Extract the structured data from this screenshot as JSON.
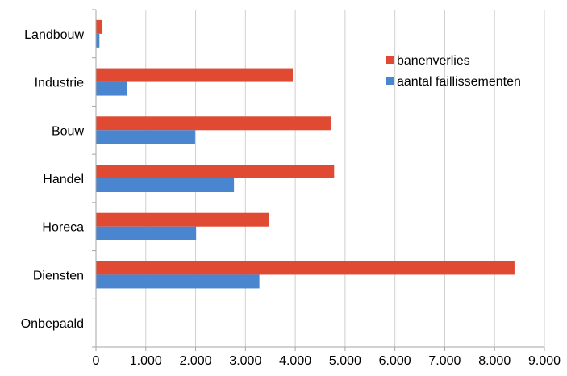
{
  "chart_data": {
    "type": "bar",
    "orientation": "horizontal",
    "categories": [
      "Landbouw",
      "Industrie",
      "Bouw",
      "Handel",
      "Horeca",
      "Diensten",
      "Onbepaald"
    ],
    "series": [
      {
        "name": "banenverlies",
        "color": "#E04A33",
        "values": [
          130,
          3950,
          4720,
          4780,
          3480,
          8400,
          0
        ]
      },
      {
        "name": "aantal faillissementen",
        "color": "#4A86CF",
        "values": [
          70,
          620,
          1990,
          2770,
          2010,
          3280,
          0
        ]
      }
    ],
    "xlim": [
      0,
      9000
    ],
    "xticks": [
      0,
      1000,
      2000,
      3000,
      4000,
      5000,
      6000,
      7000,
      8000,
      9000
    ],
    "xtick_labels": [
      "0",
      "1.000",
      "2.000",
      "3.000",
      "4.000",
      "5.000",
      "6.000",
      "7.000",
      "8.000",
      "9.000"
    ],
    "grid": "vertical",
    "legend_position": "top-right",
    "title": "",
    "xlabel": "",
    "ylabel": ""
  }
}
